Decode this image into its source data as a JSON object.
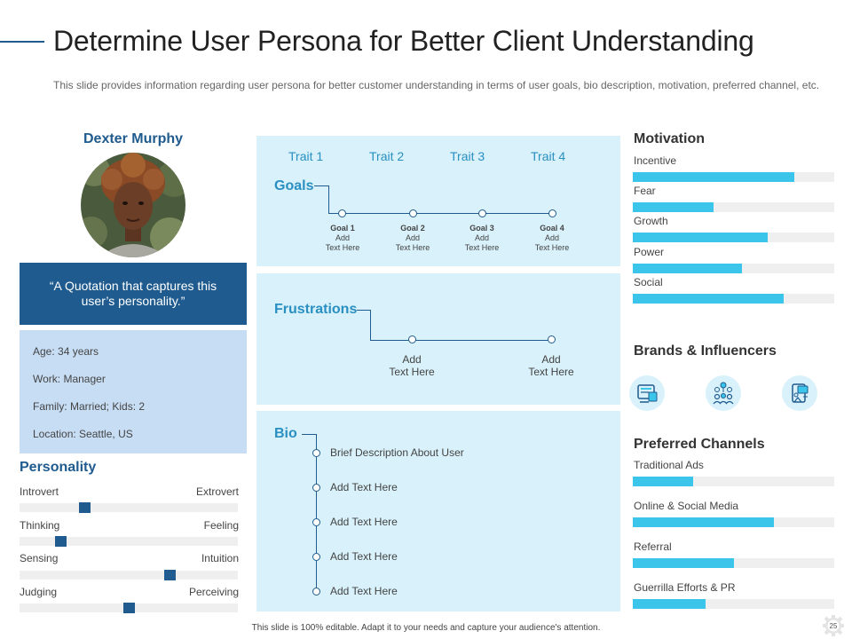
{
  "header": {
    "title": "Determine User Persona for Better Client Understanding",
    "subtitle": "This slide provides information regarding user persona for better customer understanding in terms of user goals, bio description, motivation, preferred channel, etc."
  },
  "persona": {
    "name": "Dexter Murphy",
    "quote": "“A Quotation that captures this user’s personality.”",
    "info": [
      "Age: 34 years",
      "Work: Manager",
      "Family: Married; Kids: 2",
      "Location: Seattle, US"
    ]
  },
  "personality": {
    "title": "Personality",
    "scales": [
      {
        "left": "Introvert",
        "right": "Extrovert",
        "value": 0.3
      },
      {
        "left": "Thinking",
        "right": "Feeling",
        "value": 0.19
      },
      {
        "left": "Sensing",
        "right": "Intuition",
        "value": 0.69
      },
      {
        "left": "Judging",
        "right": "Perceiving",
        "value": 0.5
      }
    ]
  },
  "traits": [
    "Trait 1",
    "Trait 2",
    "Trait 3",
    "Trait 4"
  ],
  "goals": {
    "title": "Goals",
    "items": [
      {
        "name": "Goal 1",
        "line1": "Add",
        "line2": "Text Here"
      },
      {
        "name": "Goal 2",
        "line1": "Add",
        "line2": "Text Here"
      },
      {
        "name": "Goal 3",
        "line1": "Add",
        "line2": "Text Here"
      },
      {
        "name": "Goal 4",
        "line1": "Add",
        "line2": "Text Here"
      }
    ]
  },
  "frustrations": {
    "title": "Frustrations",
    "items": [
      {
        "line1": "Add",
        "line2": "Text Here"
      },
      {
        "line1": "Add",
        "line2": "Text Here"
      }
    ]
  },
  "bio": {
    "title": "Bio",
    "items": [
      "Brief Description About User",
      "Add Text Here",
      "Add Text Here",
      "Add Text Here",
      "Add Text Here"
    ]
  },
  "motivation": {
    "title": "Motivation",
    "items": [
      {
        "label": "Incentive",
        "value": 0.8
      },
      {
        "label": "Fear",
        "value": 0.4
      },
      {
        "label": "Growth",
        "value": 0.67
      },
      {
        "label": "Power",
        "value": 0.54
      },
      {
        "label": "Social",
        "value": 0.75
      }
    ]
  },
  "brands": {
    "title": "Brands & Influencers",
    "icons": [
      "media-icon",
      "network-people-icon",
      "social-media-icon"
    ]
  },
  "channels": {
    "title": "Preferred Channels",
    "items": [
      {
        "label": "Traditional Ads",
        "value": 0.3
      },
      {
        "label": "Online & Social Media",
        "value": 0.7
      },
      {
        "label": "Referral",
        "value": 0.5
      },
      {
        "label": "Guerrilla Efforts & PR",
        "value": 0.36
      }
    ]
  },
  "footer": "This slide is 100% editable.  Adapt it to your needs and capture your audience's attention.",
  "page_number": "25",
  "colors": {
    "primary": "#1f5b8e",
    "accent": "#3bc5ea",
    "panel": "#d8f1fa",
    "info": "#c7ddf4"
  }
}
